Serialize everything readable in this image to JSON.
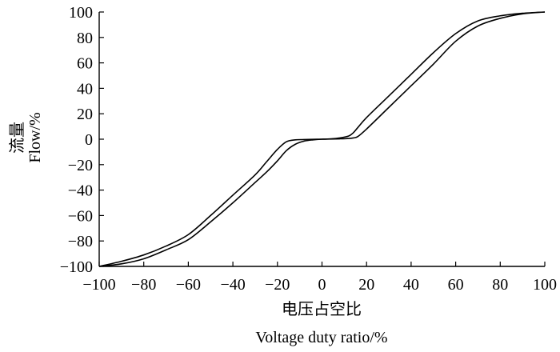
{
  "chart_data": {
    "type": "line",
    "xlabel_cn": "电压占空比",
    "xlabel_en": "Voltage duty ratio/%",
    "ylabel_cn": "流量",
    "ylabel_en": "Flow/%",
    "xlim": [
      -100,
      100
    ],
    "ylim": [
      -100,
      100
    ],
    "x_ticks": [
      -100,
      -80,
      -60,
      -40,
      -20,
      0,
      20,
      40,
      60,
      80,
      100
    ],
    "x_tick_labels": [
      "−100",
      "−80",
      "−60",
      "−40",
      "−20",
      "0",
      "20",
      "40",
      "60",
      "80",
      "100"
    ],
    "y_ticks": [
      100,
      80,
      60,
      40,
      20,
      0,
      -20,
      -40,
      -60,
      -80,
      -100
    ],
    "y_tick_labels": [
      "100",
      "80",
      "60",
      "40",
      "20",
      "0",
      "−20",
      "−40",
      "−60",
      "−80",
      "−100"
    ],
    "grid": false,
    "series": [
      {
        "x": [
          -100,
          -90,
          -80,
          -70,
          -60,
          -50,
          -40,
          -30,
          -25,
          -20,
          -16,
          -12,
          -8,
          -4,
          0,
          4,
          8,
          12,
          14,
          16,
          20,
          30,
          40,
          50,
          60,
          70,
          80,
          90,
          100
        ],
        "y": [
          -100,
          -96,
          -91,
          -84,
          -75,
          -60,
          -44,
          -28,
          -18,
          -8,
          -2,
          -0.5,
          -0.3,
          -0.1,
          0,
          0.3,
          1,
          2.5,
          5,
          9,
          17,
          34,
          51,
          68,
          83,
          93,
          97,
          99,
          100
        ]
      },
      {
        "x": [
          -100,
          -90,
          -80,
          -70,
          -60,
          -50,
          -40,
          -30,
          -25,
          -20,
          -16,
          -12,
          -8,
          -4,
          0,
          4,
          8,
          12,
          14,
          16,
          20,
          30,
          40,
          50,
          60,
          70,
          80,
          90,
          100
        ],
        "y": [
          -100,
          -98,
          -94,
          -87,
          -79,
          -65,
          -50,
          -34,
          -26,
          -17,
          -9,
          -4,
          -1.5,
          -0.5,
          0,
          0.1,
          0.3,
          0.6,
          1,
          2,
          8,
          25,
          42,
          59,
          77,
          89,
          95,
          98.5,
          100
        ]
      }
    ]
  }
}
